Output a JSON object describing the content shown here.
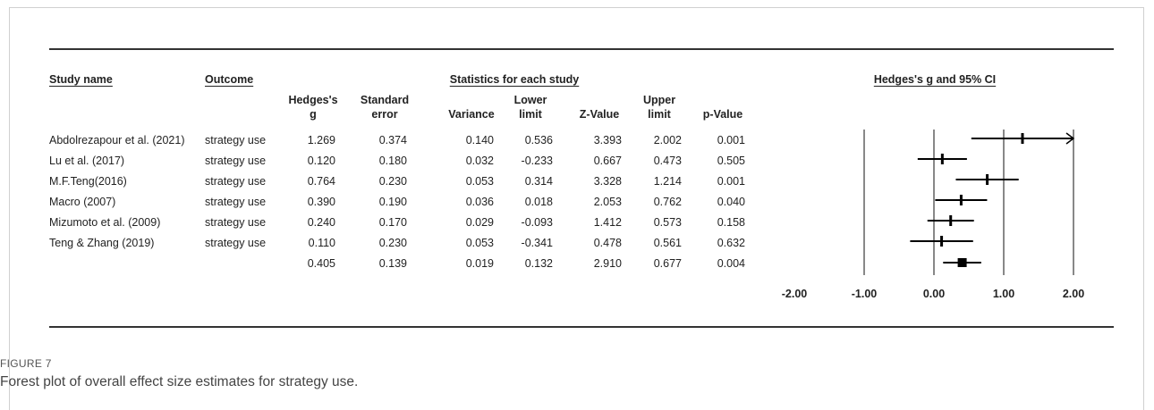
{
  "headers": {
    "study_name": "Study name",
    "outcome": "Outcome",
    "stats_group": "Statistics for each study",
    "plot_group": "Hedges's g and 95% CI",
    "cols": [
      {
        "l1": "Hedges's",
        "l2": "g"
      },
      {
        "l1": "Standard",
        "l2": "error"
      },
      {
        "l1": "",
        "l2": "Variance"
      },
      {
        "l1": "Lower",
        "l2": "limit"
      },
      {
        "l1": "",
        "l2": "Z-Value"
      },
      {
        "l1": "Upper",
        "l2": "limit"
      },
      {
        "l1": "",
        "l2": "p-Value"
      }
    ]
  },
  "rows": [
    {
      "study": "Abdolrezapour et al. (2021)",
      "outcome": "strategy use",
      "g": "1.269",
      "se": "0.374",
      "var": "0.140",
      "lower": "0.536",
      "z": "3.393",
      "upper": "2.002",
      "p": "0.001"
    },
    {
      "study": "Lu et al. (2017)",
      "outcome": "strategy use",
      "g": "0.120",
      "se": "0.180",
      "var": "0.032",
      "lower": "-0.233",
      "z": "0.667",
      "upper": "0.473",
      "p": "0.505"
    },
    {
      "study": "M.F.Teng(2016)",
      "outcome": "strategy use",
      "g": "0.764",
      "se": "0.230",
      "var": "0.053",
      "lower": "0.314",
      "z": "3.328",
      "upper": "1.214",
      "p": "0.001"
    },
    {
      "study": "Macro (2007)",
      "outcome": "strategy use",
      "g": "0.390",
      "se": "0.190",
      "var": "0.036",
      "lower": "0.018",
      "z": "2.053",
      "upper": "0.762",
      "p": "0.040"
    },
    {
      "study": "Mizumoto et al. (2009)",
      "outcome": "strategy use",
      "g": "0.240",
      "se": "0.170",
      "var": "0.029",
      "lower": "-0.093",
      "z": "1.412",
      "upper": "0.573",
      "p": "0.158"
    },
    {
      "study": "Teng & Zhang (2019)",
      "outcome": "strategy use",
      "g": "0.110",
      "se": "0.230",
      "var": "0.053",
      "lower": "-0.341",
      "z": "0.478",
      "upper": "0.561",
      "p": "0.632"
    },
    {
      "study": "",
      "outcome": "",
      "g": "0.405",
      "se": "0.139",
      "var": "0.019",
      "lower": "0.132",
      "z": "2.910",
      "upper": "0.677",
      "p": "0.004"
    }
  ],
  "chart_data": {
    "type": "forest",
    "x_ticks": [
      "-2.00",
      "-1.00",
      "0.00",
      "1.00",
      "2.00"
    ],
    "xlim": [
      -2,
      2
    ],
    "studies": [
      {
        "name": "Abdolrezapour et al. (2021)",
        "g": 1.269,
        "lower": 0.536,
        "upper": 2.002,
        "arrow_right": true
      },
      {
        "name": "Lu et al. (2017)",
        "g": 0.12,
        "lower": -0.233,
        "upper": 0.473
      },
      {
        "name": "M.F.Teng(2016)",
        "g": 0.764,
        "lower": 0.314,
        "upper": 1.214
      },
      {
        "name": "Macro (2007)",
        "g": 0.39,
        "lower": 0.018,
        "upper": 0.762
      },
      {
        "name": "Mizumoto et al. (2009)",
        "g": 0.24,
        "lower": -0.093,
        "upper": 0.573
      },
      {
        "name": "Teng & Zhang (2019)",
        "g": 0.11,
        "lower": -0.341,
        "upper": 0.561
      }
    ],
    "summary": {
      "g": 0.405,
      "lower": 0.132,
      "upper": 0.677
    }
  },
  "figure": {
    "label": "FIGURE 7",
    "caption": "Forest plot of overall effect size estimates for strategy use."
  }
}
